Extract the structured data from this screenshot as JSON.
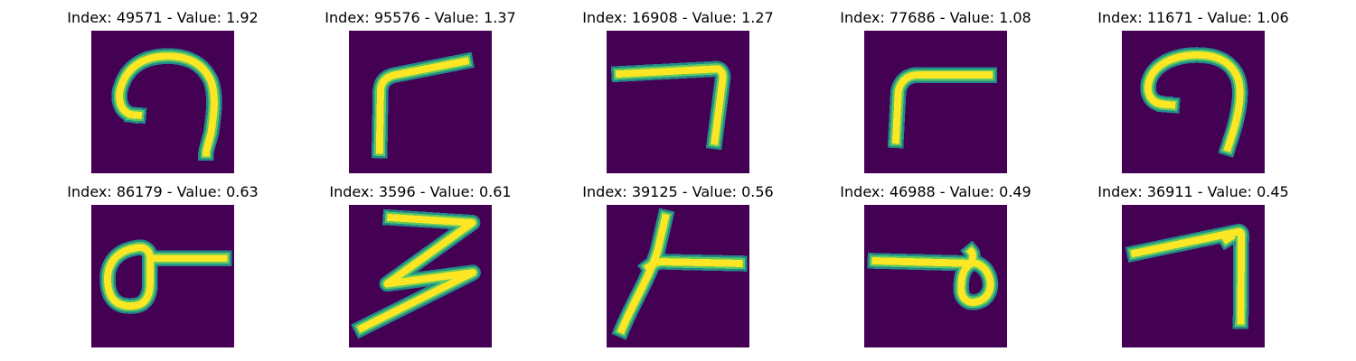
{
  "colors": {
    "background": "#440154",
    "stroke_edge": "#21918c",
    "stroke_mid": "#5ec962",
    "stroke_core": "#fde725"
  },
  "panels": [
    {
      "index": 49571,
      "value": "1.92",
      "title": "Index: 49571 - Value: 1.92"
    },
    {
      "index": 95576,
      "value": "1.37",
      "title": "Index: 95576 - Value: 1.37"
    },
    {
      "index": 16908,
      "value": "1.27",
      "title": "Index: 16908 - Value: 1.27"
    },
    {
      "index": 77686,
      "value": "1.08",
      "title": "Index: 77686 - Value: 1.08"
    },
    {
      "index": 11671,
      "value": "1.06",
      "title": "Index: 11671 - Value: 1.06"
    },
    {
      "index": 86179,
      "value": "0.63",
      "title": "Index: 86179 - Value: 0.63"
    },
    {
      "index": 3596,
      "value": "0.61",
      "title": "Index: 3596 - Value: 0.61"
    },
    {
      "index": 39125,
      "value": "0.56",
      "title": "Index: 39125 - Value: 0.56"
    },
    {
      "index": 46988,
      "value": "0.49",
      "title": "Index: 46988 - Value: 0.49"
    },
    {
      "index": 36911,
      "value": "0.45",
      "title": "Index: 36911 - Value: 0.45"
    }
  ]
}
